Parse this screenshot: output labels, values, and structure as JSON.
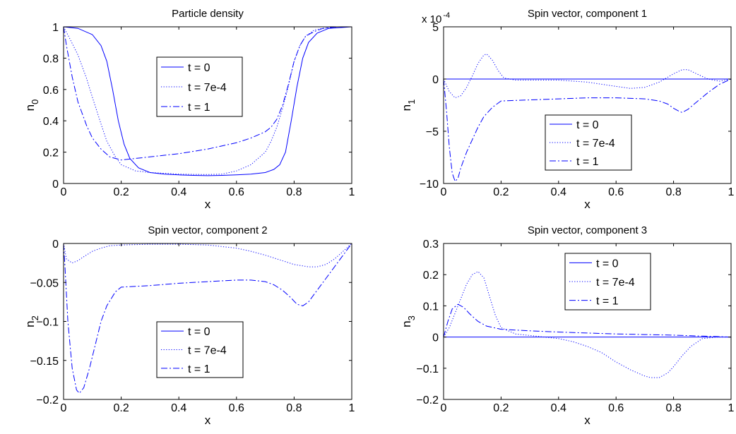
{
  "chart_data": [
    {
      "type": "line",
      "title": "Particle density",
      "xlabel": "x",
      "ylabel": "n",
      "ylabel_sub": "0",
      "xlim": [
        0,
        1
      ],
      "ylim": [
        0,
        1
      ],
      "xticks": [
        0,
        0.2,
        0.4,
        0.6,
        0.8,
        1
      ],
      "xtick_labels": [
        "0",
        "0.2",
        "0.4",
        "0.6",
        "0.8",
        "1"
      ],
      "yticks": [
        0,
        0.2,
        0.4,
        0.6,
        0.8,
        1
      ],
      "ytick_labels": [
        "0",
        "0.2",
        "0.4",
        "0.6",
        "0.8",
        "1"
      ],
      "exponent": "",
      "grid": false,
      "legend_position": "center",
      "series": [
        {
          "name": "t = 0",
          "style": "solid",
          "x": [
            0,
            0.05,
            0.1,
            0.13,
            0.15,
            0.17,
            0.19,
            0.21,
            0.23,
            0.26,
            0.3,
            0.35,
            0.4,
            0.45,
            0.5,
            0.55,
            0.6,
            0.65,
            0.7,
            0.73,
            0.75,
            0.77,
            0.79,
            0.81,
            0.83,
            0.85,
            0.88,
            0.92,
            1
          ],
          "y": [
            1,
            0.99,
            0.95,
            0.88,
            0.78,
            0.6,
            0.4,
            0.25,
            0.16,
            0.1,
            0.07,
            0.06,
            0.055,
            0.052,
            0.05,
            0.052,
            0.055,
            0.06,
            0.07,
            0.09,
            0.12,
            0.2,
            0.4,
            0.62,
            0.8,
            0.9,
            0.96,
            0.99,
            1
          ]
        },
        {
          "name": "t = 7e-4",
          "style": "dotted",
          "x": [
            0,
            0.02,
            0.05,
            0.08,
            0.1,
            0.13,
            0.15,
            0.18,
            0.2,
            0.25,
            0.3,
            0.35,
            0.4,
            0.45,
            0.5,
            0.55,
            0.6,
            0.65,
            0.7,
            0.72,
            0.74,
            0.76,
            0.78,
            0.8,
            0.82,
            0.84,
            0.87,
            0.9,
            0.95,
            1
          ],
          "y": [
            1,
            0.93,
            0.82,
            0.67,
            0.55,
            0.38,
            0.27,
            0.17,
            0.12,
            0.08,
            0.07,
            0.065,
            0.06,
            0.058,
            0.057,
            0.06,
            0.08,
            0.12,
            0.2,
            0.27,
            0.36,
            0.48,
            0.62,
            0.78,
            0.88,
            0.94,
            0.98,
            0.99,
            1,
            1
          ]
        },
        {
          "name": "t = 1",
          "style": "dashdot",
          "x": [
            0,
            0.01,
            0.03,
            0.05,
            0.08,
            0.1,
            0.13,
            0.16,
            0.2,
            0.25,
            0.3,
            0.35,
            0.4,
            0.45,
            0.5,
            0.55,
            0.6,
            0.65,
            0.7,
            0.72,
            0.74,
            0.76,
            0.78,
            0.8,
            0.82,
            0.84,
            0.87,
            0.9,
            0.95,
            1
          ],
          "y": [
            1,
            0.88,
            0.68,
            0.52,
            0.37,
            0.29,
            0.22,
            0.17,
            0.15,
            0.16,
            0.17,
            0.18,
            0.19,
            0.205,
            0.22,
            0.24,
            0.26,
            0.29,
            0.33,
            0.36,
            0.41,
            0.5,
            0.63,
            0.78,
            0.88,
            0.94,
            0.97,
            0.99,
            1,
            1
          ]
        }
      ]
    },
    {
      "type": "line",
      "title": "Spin vector, component 1",
      "xlabel": "x",
      "ylabel": "n",
      "ylabel_sub": "1",
      "xlim": [
        0,
        1
      ],
      "ylim": [
        -10,
        5
      ],
      "xticks": [
        0,
        0.2,
        0.4,
        0.6,
        0.8,
        1
      ],
      "xtick_labels": [
        "0",
        "0.2",
        "0.4",
        "0.6",
        "0.8",
        "1"
      ],
      "yticks": [
        -10,
        -5,
        0,
        5
      ],
      "ytick_labels": [
        "−10",
        "−5",
        "0",
        "5"
      ],
      "exponent": "x 10",
      "exponent_power": "-4",
      "grid": false,
      "legend_position": "bottom-center",
      "series": [
        {
          "name": "t = 0",
          "style": "solid",
          "x": [
            0,
            1
          ],
          "y": [
            0,
            0
          ]
        },
        {
          "name": "t = 7e-4",
          "style": "dotted",
          "x": [
            0,
            0.02,
            0.04,
            0.06,
            0.08,
            0.1,
            0.12,
            0.14,
            0.15,
            0.17,
            0.19,
            0.21,
            0.25,
            0.3,
            0.4,
            0.5,
            0.6,
            0.65,
            0.7,
            0.75,
            0.8,
            0.83,
            0.85,
            0.88,
            0.92,
            0.96,
            1
          ],
          "y": [
            0,
            -1.2,
            -1.8,
            -1.6,
            -0.8,
            0.3,
            1.5,
            2.3,
            2.4,
            1.8,
            0.8,
            0.1,
            -0.1,
            -0.1,
            -0.1,
            -0.3,
            -0.7,
            -0.9,
            -0.8,
            -0.3,
            0.5,
            0.9,
            0.9,
            0.5,
            0,
            -0.2,
            0
          ]
        },
        {
          "name": "t = 1",
          "style": "dashdot",
          "x": [
            0,
            0.01,
            0.02,
            0.03,
            0.04,
            0.05,
            0.06,
            0.08,
            0.1,
            0.12,
            0.14,
            0.17,
            0.2,
            0.25,
            0.3,
            0.4,
            0.5,
            0.6,
            0.7,
            0.75,
            0.78,
            0.8,
            0.82,
            0.83,
            0.85,
            0.88,
            0.92,
            0.96,
            1
          ],
          "y": [
            0,
            -3,
            -6.5,
            -9,
            -9.8,
            -9.5,
            -8.5,
            -7,
            -5.8,
            -4.6,
            -3.6,
            -2.7,
            -2.1,
            -2.05,
            -2.0,
            -1.9,
            -1.8,
            -1.8,
            -1.9,
            -2.1,
            -2.4,
            -2.8,
            -3.1,
            -3.2,
            -2.9,
            -2.2,
            -1.3,
            -0.5,
            0
          ]
        }
      ]
    },
    {
      "type": "line",
      "title": "Spin vector, component 2",
      "xlabel": "x",
      "ylabel": "n",
      "ylabel_sub": "2",
      "xlim": [
        0,
        1
      ],
      "ylim": [
        -0.2,
        0
      ],
      "xticks": [
        0,
        0.2,
        0.4,
        0.6,
        0.8,
        1
      ],
      "xtick_labels": [
        "0",
        "0.2",
        "0.4",
        "0.6",
        "0.8",
        "1"
      ],
      "yticks": [
        -0.2,
        -0.15,
        -0.1,
        -0.05,
        0
      ],
      "ytick_labels": [
        "−0.2",
        "−0.15",
        "−0.1",
        "−0.05",
        "0"
      ],
      "exponent": "",
      "grid": false,
      "legend_position": "bottom-center",
      "series": [
        {
          "name": "t = 0",
          "style": "solid",
          "x": [
            0,
            1
          ],
          "y": [
            0,
            0
          ]
        },
        {
          "name": "t = 7e-4",
          "style": "dotted",
          "x": [
            0,
            0.01,
            0.03,
            0.05,
            0.07,
            0.1,
            0.13,
            0.16,
            0.2,
            0.3,
            0.4,
            0.5,
            0.6,
            0.65,
            0.7,
            0.75,
            0.8,
            0.85,
            0.88,
            0.91,
            0.94,
            0.97,
            1
          ],
          "y": [
            0,
            -0.02,
            -0.025,
            -0.022,
            -0.017,
            -0.01,
            -0.006,
            -0.003,
            -0.002,
            -0.001,
            -0.001,
            -0.002,
            -0.006,
            -0.01,
            -0.015,
            -0.021,
            -0.027,
            -0.03,
            -0.03,
            -0.027,
            -0.02,
            -0.01,
            0
          ]
        },
        {
          "name": "t = 1",
          "style": "dashdot",
          "x": [
            0,
            0.005,
            0.015,
            0.03,
            0.045,
            0.055,
            0.07,
            0.09,
            0.11,
            0.13,
            0.15,
            0.18,
            0.2,
            0.3,
            0.4,
            0.5,
            0.6,
            0.65,
            0.7,
            0.73,
            0.76,
            0.79,
            0.81,
            0.83,
            0.85,
            0.88,
            0.92,
            0.96,
            1
          ],
          "y": [
            0,
            -0.03,
            -0.1,
            -0.16,
            -0.188,
            -0.192,
            -0.185,
            -0.16,
            -0.13,
            -0.1,
            -0.08,
            -0.062,
            -0.056,
            -0.054,
            -0.051,
            -0.049,
            -0.047,
            -0.047,
            -0.049,
            -0.053,
            -0.06,
            -0.07,
            -0.078,
            -0.08,
            -0.075,
            -0.06,
            -0.04,
            -0.02,
            0
          ]
        }
      ]
    },
    {
      "type": "line",
      "title": "Spin vector, component 3",
      "xlabel": "x",
      "ylabel": "n",
      "ylabel_sub": "3",
      "xlim": [
        0,
        1
      ],
      "ylim": [
        -0.2,
        0.3
      ],
      "xticks": [
        0,
        0.2,
        0.4,
        0.6,
        0.8,
        1
      ],
      "xtick_labels": [
        "0",
        "0.2",
        "0.4",
        "0.6",
        "0.8",
        "1"
      ],
      "yticks": [
        -0.2,
        -0.1,
        0,
        0.1,
        0.2,
        0.3
      ],
      "ytick_labels": [
        "−0.2",
        "−0.1",
        "0",
        "0.1",
        "0.2",
        "0.3"
      ],
      "exponent": "",
      "grid": false,
      "legend_position": "top-center",
      "series": [
        {
          "name": "t = 0",
          "style": "solid",
          "x": [
            0,
            1
          ],
          "y": [
            0,
            0
          ]
        },
        {
          "name": "t = 7e-4",
          "style": "dotted",
          "x": [
            0,
            0.02,
            0.05,
            0.08,
            0.1,
            0.12,
            0.14,
            0.16,
            0.18,
            0.2,
            0.25,
            0.3,
            0.35,
            0.4,
            0.45,
            0.5,
            0.55,
            0.6,
            0.65,
            0.7,
            0.72,
            0.75,
            0.78,
            0.8,
            0.83,
            0.86,
            0.9,
            0.95,
            1
          ],
          "y": [
            0,
            0.03,
            0.1,
            0.17,
            0.2,
            0.21,
            0.19,
            0.13,
            0.07,
            0.03,
            0.01,
            0.005,
            0,
            -0.005,
            -0.015,
            -0.03,
            -0.05,
            -0.08,
            -0.105,
            -0.125,
            -0.13,
            -0.13,
            -0.115,
            -0.095,
            -0.06,
            -0.03,
            -0.005,
            0,
            0
          ]
        },
        {
          "name": "t = 1",
          "style": "dashdot",
          "x": [
            0,
            0.015,
            0.03,
            0.05,
            0.07,
            0.09,
            0.12,
            0.15,
            0.2,
            0.3,
            0.4,
            0.5,
            0.6,
            0.7,
            0.8,
            0.9,
            1
          ],
          "y": [
            0,
            0.05,
            0.09,
            0.105,
            0.095,
            0.075,
            0.05,
            0.035,
            0.025,
            0.02,
            0.016,
            0.013,
            0.01,
            0.008,
            0.006,
            0.003,
            0
          ]
        }
      ]
    }
  ]
}
